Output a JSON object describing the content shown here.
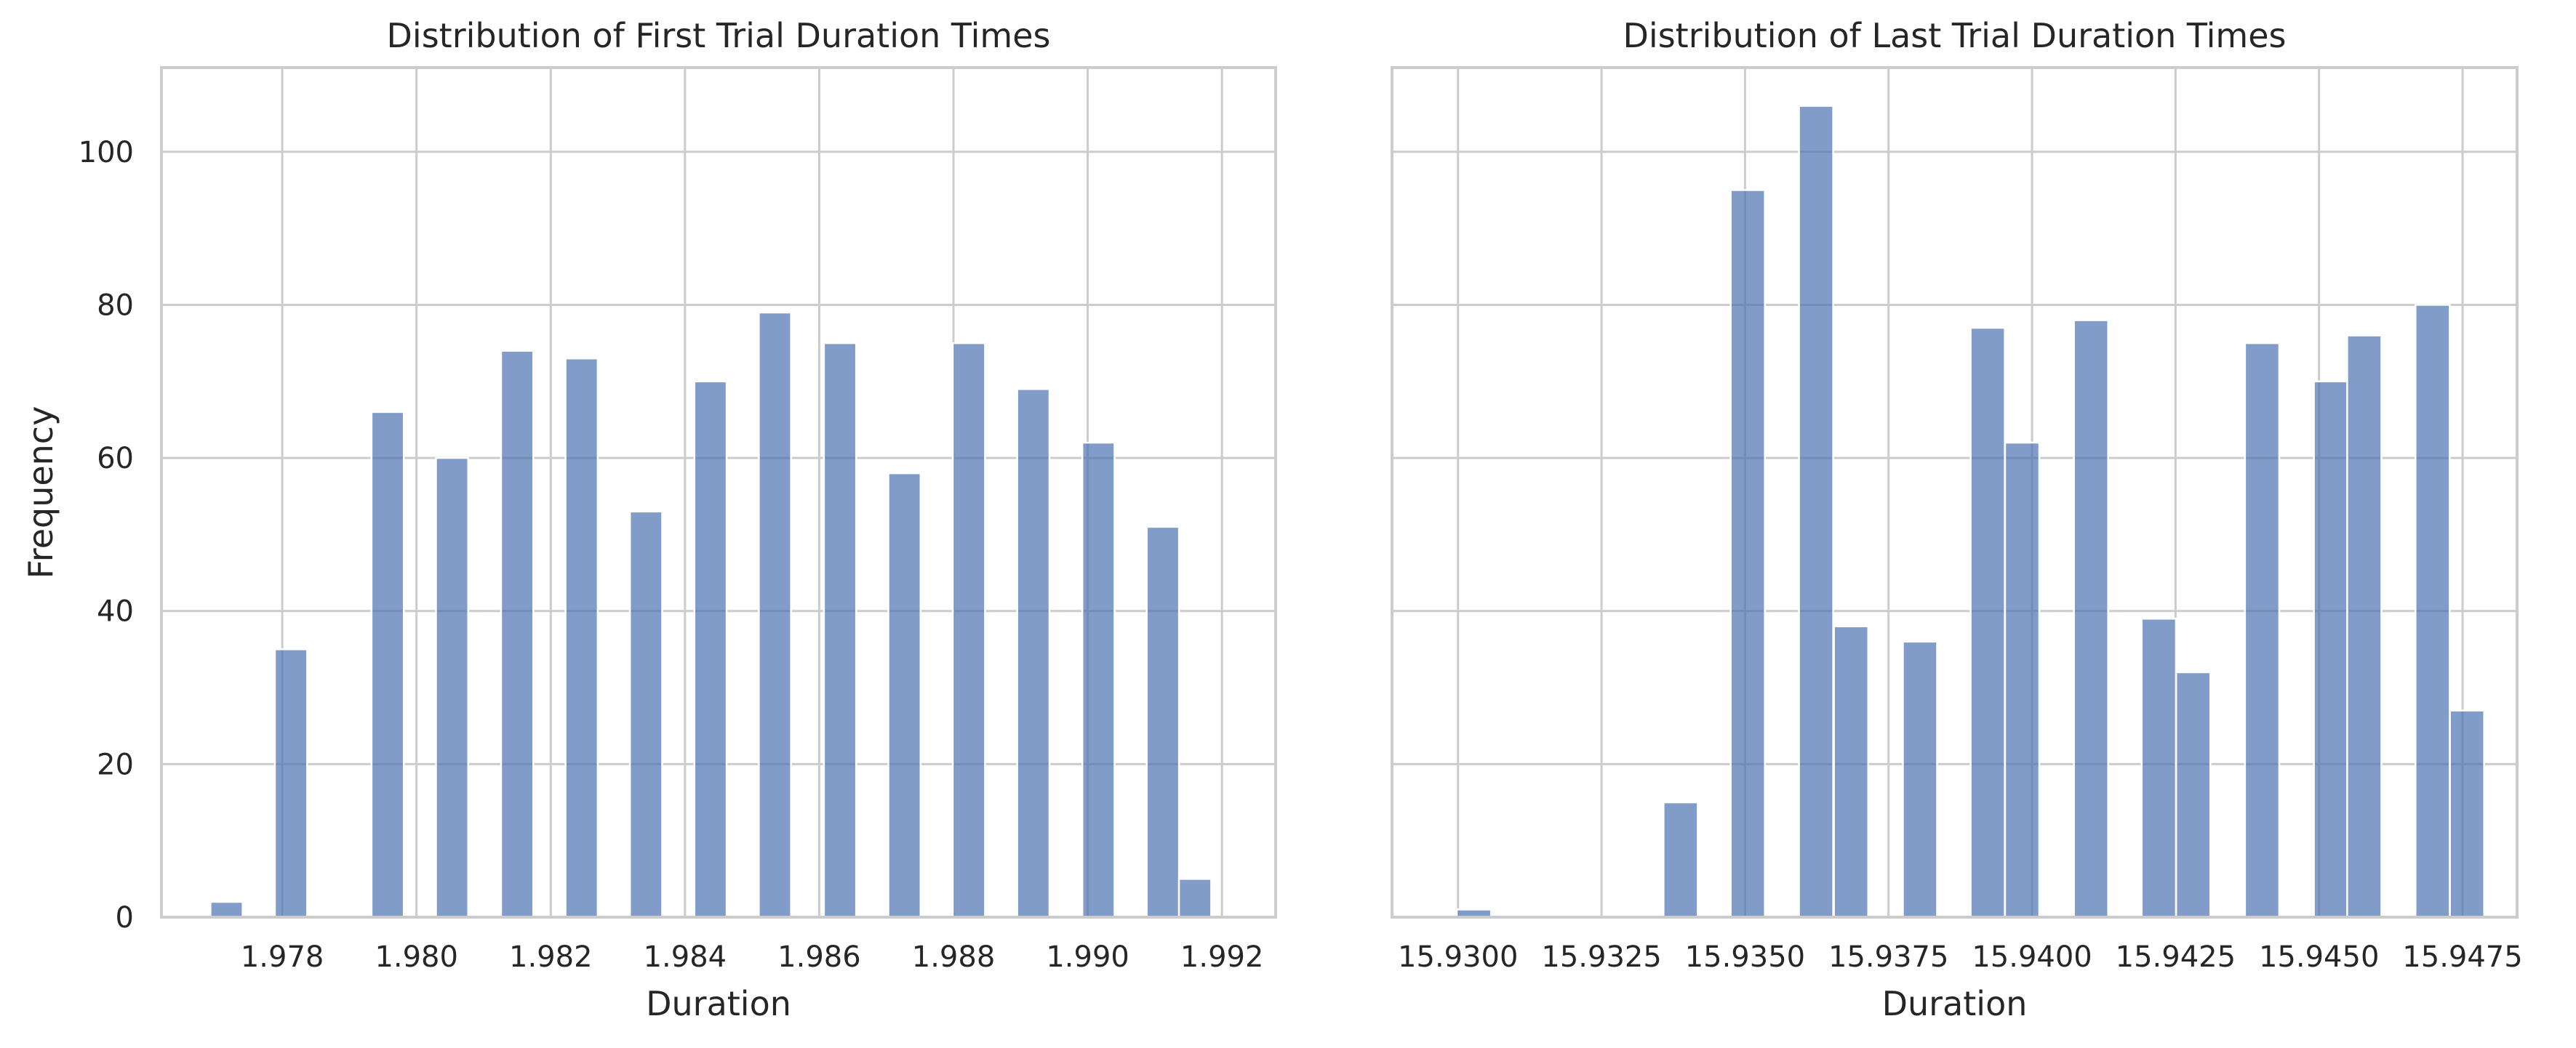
{
  "chart_data": [
    {
      "type": "bar",
      "title": "Distribution of First Trial Duration Times",
      "xlabel": "Duration",
      "ylabel": "Frequency",
      "xlim": [
        1.9762,
        1.9928
      ],
      "ylim": [
        0,
        111
      ],
      "xticks": [
        1.978,
        1.98,
        1.982,
        1.984,
        1.986,
        1.988,
        1.99,
        1.992
      ],
      "xtick_labels": [
        "1.978",
        "1.980",
        "1.982",
        "1.984",
        "1.986",
        "1.988",
        "1.990",
        "1.992"
      ],
      "yticks": [
        0,
        20,
        40,
        60,
        80,
        100
      ],
      "ytick_labels": [
        "0",
        "20",
        "40",
        "60",
        "80",
        "100"
      ],
      "grid": true,
      "bin_width": 0.00048,
      "bin_starts": [
        1.97693,
        1.97789,
        1.97933,
        1.98029,
        1.98126,
        1.98222,
        1.98318,
        1.98414,
        1.9851,
        1.98607,
        1.98703,
        1.98799,
        1.98895,
        1.98992,
        1.99088,
        1.99136
      ],
      "values": [
        2,
        35,
        66,
        60,
        74,
        73,
        53,
        70,
        79,
        75,
        58,
        75,
        69,
        62,
        51,
        5
      ]
    },
    {
      "type": "bar",
      "title": "Distribution of Last Trial Duration Times",
      "xlabel": "Duration",
      "ylabel": "",
      "xlim": [
        15.92885,
        15.94845
      ],
      "ylim": [
        0,
        111
      ],
      "xticks": [
        15.93,
        15.9325,
        15.935,
        15.9375,
        15.94,
        15.9425,
        15.945,
        15.9475
      ],
      "xtick_labels": [
        "15.9300",
        "15.9325",
        "15.9350",
        "15.9375",
        "15.9400",
        "15.9425",
        "15.9450",
        "15.9475"
      ],
      "yticks": [
        0,
        20,
        40,
        60,
        80,
        100
      ],
      "grid": true,
      "bin_width": 0.000596,
      "bin_starts": [
        15.92998,
        15.93358,
        15.93475,
        15.93594,
        15.93655,
        15.93775,
        15.93893,
        15.93953,
        15.94073,
        15.94191,
        15.94251,
        15.94371,
        15.94491,
        15.94549,
        15.94668,
        15.94728
      ],
      "values": [
        1,
        15,
        95,
        106,
        38,
        36,
        77,
        62,
        78,
        39,
        32,
        75,
        70,
        76,
        80,
        27
      ]
    }
  ]
}
